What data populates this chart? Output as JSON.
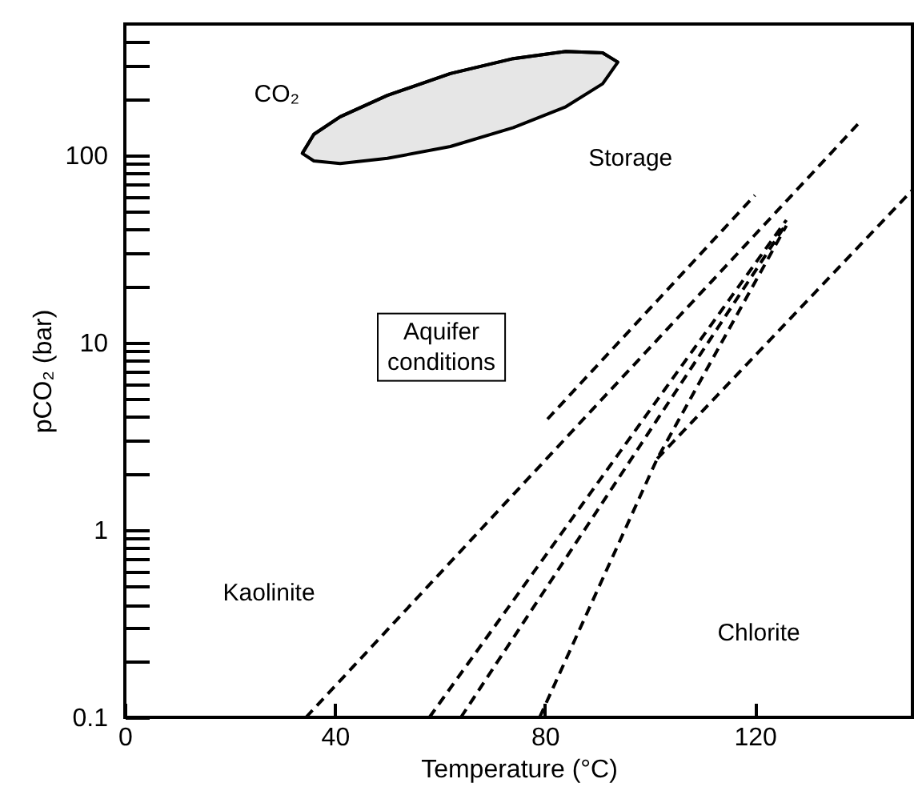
{
  "chart_data": {
    "type": "line",
    "xlabel": "Temperature (°C)",
    "ylabel": "pCO₂ (bar)",
    "log": "y",
    "xlim": [
      0,
      150
    ],
    "xticks": [
      0,
      40,
      80,
      120
    ],
    "ylim": [
      0.1,
      500
    ],
    "yticks": [
      0.1,
      {
        "value": 0.2,
        "label": null
      },
      {
        "value": 0.3,
        "label": null
      },
      {
        "value": 0.4,
        "label": null
      },
      {
        "value": 0.5,
        "label": null
      },
      {
        "value": 0.6,
        "label": null
      },
      {
        "value": 0.7,
        "label": null
      },
      {
        "value": 0.8,
        "label": null
      },
      {
        "value": 0.9,
        "label": null
      },
      1,
      {
        "value": 2,
        "label": null
      },
      {
        "value": 3,
        "label": null
      },
      {
        "value": 4,
        "label": null
      },
      {
        "value": 5,
        "label": null
      },
      {
        "value": 6,
        "label": null
      },
      {
        "value": 7,
        "label": null
      },
      {
        "value": 8,
        "label": null
      },
      {
        "value": 9,
        "label": null
      },
      10,
      {
        "value": 20,
        "label": null
      },
      {
        "value": 30,
        "label": null
      },
      {
        "value": 40,
        "label": null
      },
      {
        "value": 50,
        "label": null
      },
      {
        "value": 60,
        "label": null
      },
      {
        "value": 70,
        "label": null
      },
      {
        "value": 80,
        "label": null
      },
      {
        "value": 90,
        "label": null
      },
      100,
      {
        "value": 200,
        "label": null
      },
      {
        "value": 300,
        "label": null
      },
      {
        "value": 400,
        "label": null
      }
    ],
    "grid": false,
    "marker": "none",
    "line_style": "dashed",
    "series": [
      {
        "color": "#000000",
        "line_style": "solid",
        "x": [
          33.8,
          36,
          41,
          50,
          62,
          74,
          84,
          91,
          93.9
        ],
        "values": [
          102,
          129,
          160,
          208,
          272,
          327,
          357,
          351,
          313
        ],
        "lower": [
          102,
          93,
          90,
          96,
          111,
          140,
          181,
          240,
          313
        ],
        "upper": [
          102,
          129,
          160,
          208,
          272,
          327,
          357,
          351,
          313
        ]
      },
      {
        "color": "#000000",
        "x": [
          34.5,
          140
        ],
        "values": [
          0.1,
          150
        ]
      },
      {
        "color": "#000000",
        "x": [
          80.5,
          120
        ],
        "values": [
          3.9,
          61
        ]
      },
      {
        "color": "#000000",
        "x": [
          101.4,
          150
        ],
        "values": [
          2.4,
          65
        ]
      },
      {
        "color": "#000000",
        "x": [
          79,
          101.4,
          126
        ],
        "values": [
          0.1,
          2.4,
          42
        ]
      },
      {
        "color": "#000000",
        "x": [
          58,
          126
        ],
        "values": [
          0.1,
          45
        ]
      },
      {
        "color": "#000000",
        "x": [
          64,
          126
        ],
        "values": [
          0.1,
          43
        ]
      }
    ],
    "annotations": [
      "CO₂",
      "Storage",
      "Aquifer\nconditions",
      "Kaolinite",
      "Chlorite"
    ]
  }
}
